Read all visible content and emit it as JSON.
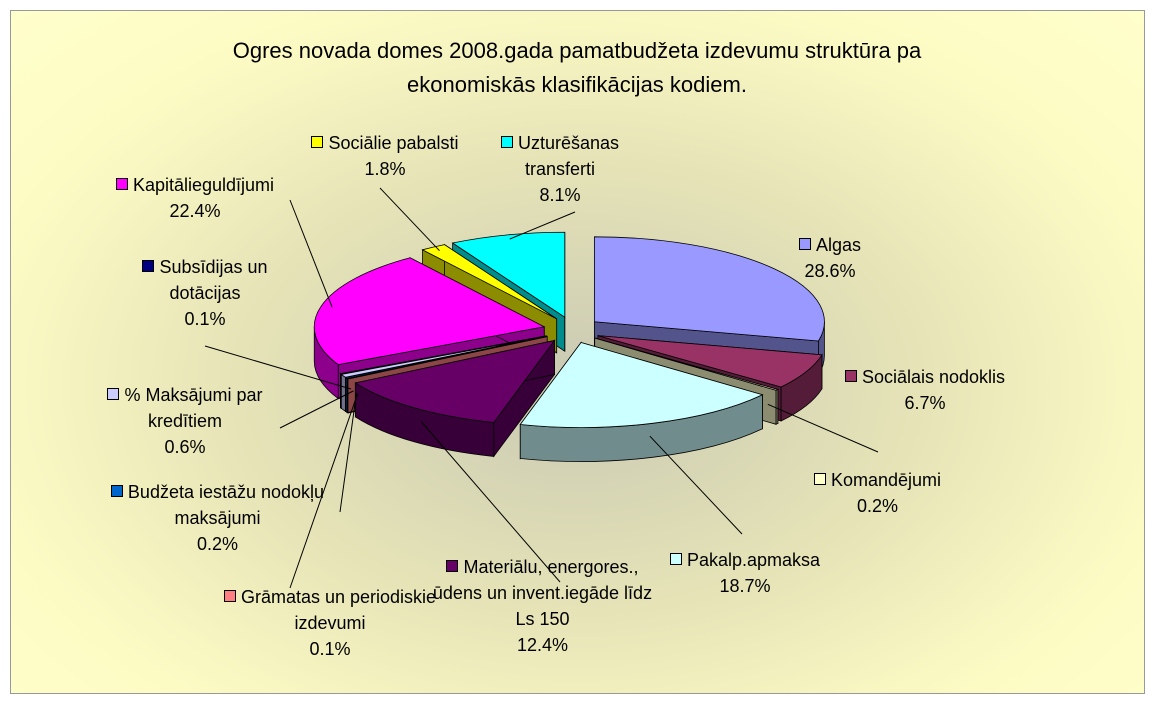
{
  "chart_data": {
    "type": "pie",
    "title": "Ogres novada domes 2008.gada pamatbudžeta izdevumu struktūra pa ekonomiskās klasifikācijas kodiem.",
    "categories": [
      "Algas",
      "Sociālais nodoklis",
      "Komandējumi",
      "Pakalp.apmaksa",
      "Materiālu, energores., ūdens un invent.iegāde līdz Ls 150",
      "Grāmatas un periodiskie izdevumi",
      "Budžeta iestāžu nodokļu maksājumi",
      "% Maksājumi par kredītiem",
      "Subsīdijas un dotācijas",
      "Kapitālieguldījumi",
      "Sociālie pabalsti",
      "Uzturēšanas transferti"
    ],
    "values": [
      28.6,
      6.7,
      0.2,
      18.7,
      12.4,
      0.1,
      0.2,
      0.6,
      0.1,
      22.4,
      1.8,
      8.1
    ],
    "value_labels": [
      "28.6%",
      "6.7%",
      "0.2%",
      "18.7%",
      "12.4%",
      "0.1%",
      "0.2%",
      "0.6%",
      "0.1%",
      "22.4%",
      "1.8%",
      "8.1%"
    ],
    "colors": [
      "#9999ff",
      "#993366",
      "#ffffcc",
      "#ccffff",
      "#660066",
      "#ff8080",
      "#0066cc",
      "#ccccff",
      "#000080",
      "#ff00ff",
      "#ffff00",
      "#00ffff"
    ]
  }
}
